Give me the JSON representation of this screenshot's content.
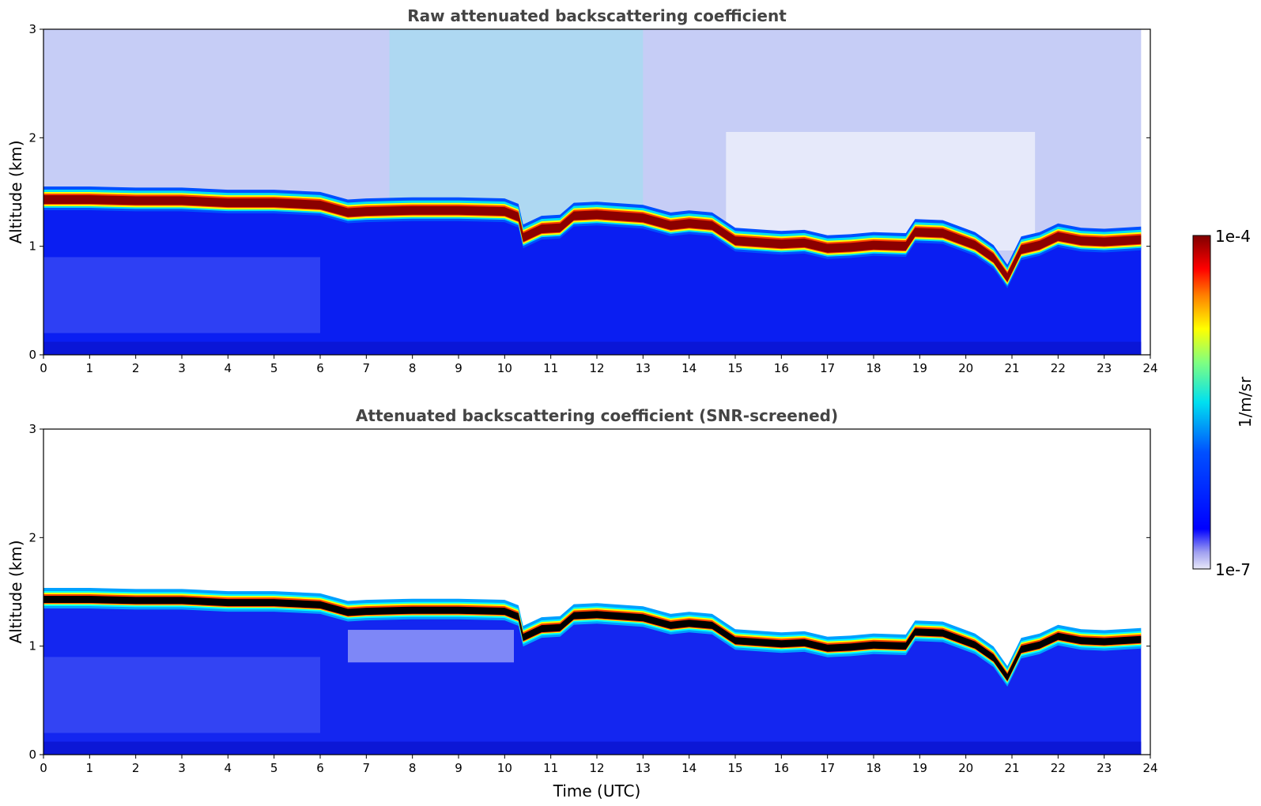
{
  "chart_data": [
    {
      "type": "heatmap",
      "title": "Raw attenuated backscattering coefficient",
      "xlabel": "",
      "ylabel": "Altitude (km)",
      "xlim": [
        0,
        24
      ],
      "ylim": [
        0,
        3
      ],
      "xticks": [
        "0",
        "1",
        "2",
        "3",
        "4",
        "5",
        "6",
        "7",
        "8",
        "9",
        "10",
        "11",
        "12",
        "13",
        "14",
        "15",
        "16",
        "17",
        "18",
        "19",
        "20",
        "21",
        "22",
        "23",
        "24"
      ],
      "yticks": [
        "0",
        "1",
        "2",
        "3"
      ],
      "data_end_time": 23.8,
      "cloud_base_km": {
        "x": [
          0,
          1,
          2,
          3,
          4,
          5,
          6,
          6.6,
          7,
          8,
          9,
          10,
          10.3,
          10.4,
          10.8,
          11.2,
          11.5,
          12,
          13,
          13.6,
          14,
          14.5,
          15,
          16,
          16.5,
          17,
          17.5,
          18,
          18.7,
          18.9,
          19.5,
          20.2,
          20.6,
          20.9,
          21.2,
          21.6,
          22,
          22.5,
          23,
          23.8
        ],
        "y": [
          1.42,
          1.42,
          1.41,
          1.41,
          1.39,
          1.39,
          1.37,
          1.3,
          1.31,
          1.32,
          1.32,
          1.31,
          1.26,
          1.07,
          1.15,
          1.16,
          1.27,
          1.28,
          1.25,
          1.18,
          1.2,
          1.18,
          1.04,
          1.01,
          1.02,
          0.97,
          0.98,
          1.0,
          0.99,
          1.12,
          1.11,
          1.0,
          0.88,
          0.7,
          0.96,
          1.0,
          1.08,
          1.04,
          1.03,
          1.05
        ]
      },
      "colorbar": {
        "min_label": "1e-7",
        "max_label": "1e-4",
        "label": "1/m/sr",
        "scale": "log"
      }
    },
    {
      "type": "heatmap",
      "title": "Attenuated backscattering coefficient (SNR-screened)",
      "xlabel": "Time (UTC)",
      "ylabel": "Altitude (km)",
      "xlim": [
        0,
        24
      ],
      "ylim": [
        0,
        3
      ],
      "xticks": [
        "0",
        "1",
        "2",
        "3",
        "4",
        "5",
        "6",
        "7",
        "8",
        "9",
        "10",
        "11",
        "12",
        "13",
        "14",
        "15",
        "16",
        "17",
        "18",
        "19",
        "20",
        "21",
        "22",
        "23",
        "24"
      ],
      "yticks": [
        "0",
        "1",
        "2",
        "3"
      ],
      "data_end_time": 23.8,
      "cloud_base_km": {
        "x": [
          0,
          1,
          2,
          3,
          4,
          5,
          6,
          6.6,
          7,
          8,
          9,
          10,
          10.3,
          10.4,
          10.8,
          11.2,
          11.5,
          12,
          13,
          13.6,
          14,
          14.5,
          15,
          16,
          16.5,
          17,
          17.5,
          18,
          18.7,
          18.9,
          19.5,
          20.2,
          20.6,
          20.9,
          21.2,
          21.6,
          22,
          22.5,
          23,
          23.8
        ],
        "y": [
          1.42,
          1.42,
          1.41,
          1.41,
          1.39,
          1.39,
          1.37,
          1.3,
          1.31,
          1.32,
          1.32,
          1.31,
          1.26,
          1.07,
          1.15,
          1.16,
          1.27,
          1.28,
          1.25,
          1.18,
          1.2,
          1.18,
          1.04,
          1.01,
          1.02,
          0.97,
          0.98,
          1.0,
          0.99,
          1.12,
          1.11,
          1.0,
          0.88,
          0.7,
          0.96,
          1.0,
          1.08,
          1.04,
          1.03,
          1.05
        ]
      },
      "colorbar": {
        "min_label": "1e-7",
        "max_label": "1e-4",
        "label": "1/m/sr",
        "scale": "log"
      }
    }
  ],
  "colormap": [
    "#e6e6f8",
    "#0000ff",
    "#00a0ff",
    "#00ffff",
    "#ffff00",
    "#ff8000",
    "#ff0000",
    "#800000"
  ],
  "colorbar": {
    "max_label": "1e-4",
    "min_label": "1e-7",
    "label": "1/m/sr"
  }
}
